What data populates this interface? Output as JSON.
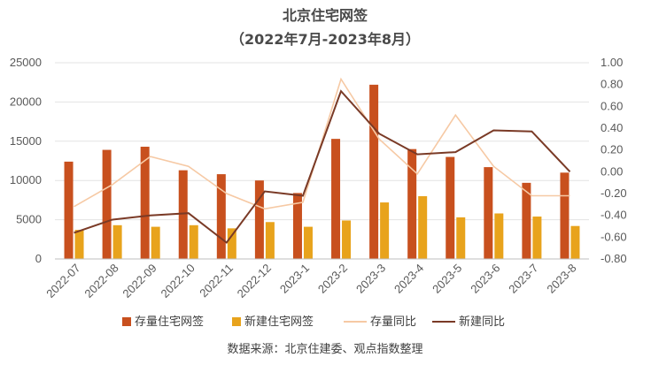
{
  "chart_data": {
    "type": "bar",
    "title": "北京住宅网签",
    "subtitle": "（2022年7月-2023年8月）",
    "categories": [
      "2022-07",
      "2022-08",
      "2022-09",
      "2022-10",
      "2022-11",
      "2022-12",
      "2023-1",
      "2023-2",
      "2023-3",
      "2023-4",
      "2023-5",
      "2023-6",
      "2023-7",
      "2023-8"
    ],
    "y_left": {
      "min": 0,
      "max": 25000,
      "ticks": [
        "0",
        "5000",
        "10000",
        "15000",
        "20000",
        "25000"
      ]
    },
    "y_right": {
      "min": -0.8,
      "max": 1.0,
      "ticks": [
        "-0.80",
        "-0.60",
        "-0.40",
        "-0.20",
        "0.00",
        "0.20",
        "0.40",
        "0.60",
        "0.80",
        "1.00"
      ]
    },
    "bar_series": [
      {
        "name": "存量住宅网签",
        "color": "#C8501E",
        "values": [
          12400,
          13900,
          14300,
          11300,
          10800,
          10000,
          8400,
          15300,
          22200,
          14000,
          13000,
          11700,
          9700,
          11000
        ]
      },
      {
        "name": "新建住宅网签",
        "color": "#E8A31C",
        "values": [
          3700,
          4300,
          4100,
          4300,
          3900,
          4700,
          4100,
          4900,
          7200,
          8000,
          5300,
          5800,
          5400,
          4200
        ]
      }
    ],
    "line_series": [
      {
        "name": "存量同比",
        "color": "#F6C9A4",
        "values": [
          -0.32,
          -0.12,
          0.14,
          0.05,
          -0.2,
          -0.34,
          -0.28,
          0.85,
          0.3,
          -0.02,
          0.52,
          0.05,
          -0.22,
          -0.22
        ]
      },
      {
        "name": "新建同比",
        "color": "#7A3A26",
        "values": [
          -0.56,
          -0.44,
          -0.4,
          -0.38,
          -0.65,
          -0.18,
          -0.22,
          0.74,
          0.35,
          0.16,
          0.18,
          0.38,
          0.37,
          0.0
        ]
      }
    ],
    "legend_position": "bottom",
    "source": "数据来源：北京住建委、观点指数整理"
  }
}
